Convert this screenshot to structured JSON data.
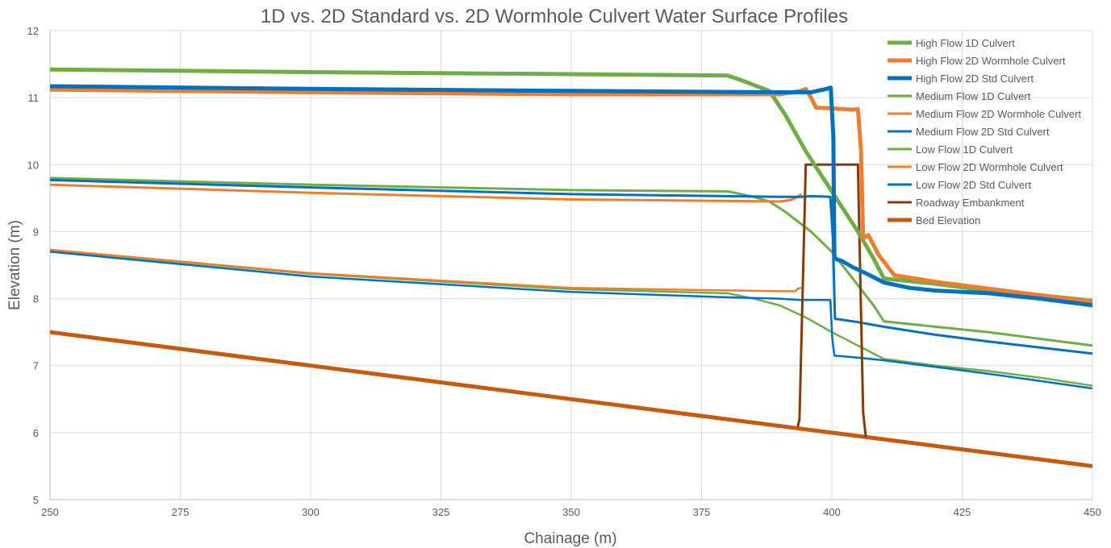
{
  "chart_data": {
    "type": "line",
    "title": "1D vs. 2D Standard vs. 2D Wormhole Culvert Water Surface Profiles",
    "xlabel": "Chainage (m)",
    "ylabel": "Elevation (m)",
    "xlim": [
      250,
      450
    ],
    "ylim": [
      5,
      12
    ],
    "x_ticks": [
      250,
      275,
      300,
      325,
      350,
      375,
      400,
      425,
      450
    ],
    "y_ticks": [
      5,
      6,
      7,
      8,
      9,
      10,
      11,
      12
    ],
    "grid": true,
    "legend_position": "top-right",
    "series": [
      {
        "name": "High Flow 1D Culvert",
        "color": "#70ad47",
        "width": 5,
        "x": [
          250,
          300,
          350,
          380,
          383,
          388,
          391,
          395,
          400,
          405,
          408,
          410,
          420,
          430,
          440,
          450
        ],
        "y": [
          11.42,
          11.38,
          11.35,
          11.33,
          11.25,
          11.1,
          10.75,
          10.2,
          9.6,
          9.0,
          8.6,
          8.3,
          8.22,
          8.12,
          8.05,
          7.97
        ]
      },
      {
        "name": "High Flow 2D Wormhole Culvert",
        "color": "#ed7d31",
        "width": 5,
        "x": [
          250,
          300,
          350,
          390,
          394,
          395,
          396,
          397,
          400,
          404,
          405,
          405.6,
          406,
          407,
          409,
          412,
          420,
          430,
          440,
          450
        ],
        "y": [
          11.12,
          11.08,
          11.05,
          11.05,
          11.1,
          11.13,
          11.0,
          10.85,
          10.84,
          10.82,
          10.83,
          10.2,
          8.9,
          8.95,
          8.65,
          8.35,
          8.25,
          8.15,
          8.05,
          7.95
        ]
      },
      {
        "name": "High Flow 2D Std Culvert",
        "color": "#0070c0",
        "width": 5,
        "x": [
          250,
          300,
          350,
          390,
          396,
          399,
          399.8,
          400.3,
          400.5,
          402,
          404,
          407,
          410,
          415,
          420,
          430,
          440,
          450
        ],
        "y": [
          11.17,
          11.13,
          11.1,
          11.08,
          11.08,
          11.13,
          11.15,
          10.4,
          8.6,
          8.56,
          8.47,
          8.36,
          8.24,
          8.16,
          8.12,
          8.08,
          8.0,
          7.9
        ]
      },
      {
        "name": "Medium Flow 1D Culvert",
        "color": "#70ad47",
        "width": 3,
        "x": [
          250,
          300,
          350,
          380,
          385,
          388,
          391,
          396,
          400,
          404,
          408,
          410,
          420,
          430,
          440,
          450
        ],
        "y": [
          9.8,
          9.7,
          9.62,
          9.6,
          9.52,
          9.45,
          9.3,
          9.0,
          8.7,
          8.3,
          7.9,
          7.66,
          7.58,
          7.5,
          7.4,
          7.3
        ]
      },
      {
        "name": "Medium Flow 2D Wormhole Culvert",
        "color": "#ed7d31",
        "width": 3,
        "x": [
          250,
          300,
          350,
          390,
          392,
          393.5,
          394
        ],
        "y": [
          9.7,
          9.58,
          9.48,
          9.45,
          9.47,
          9.52,
          9.55
        ]
      },
      {
        "name": "Medium Flow 2D Std Culvert",
        "color": "#0070c0",
        "width": 3,
        "x": [
          250,
          300,
          350,
          390,
          394,
          396,
          399.7,
          400.2,
          400.6,
          405,
          410,
          420,
          430,
          440,
          450
        ],
        "y": [
          9.77,
          9.66,
          9.56,
          9.52,
          9.52,
          9.53,
          9.52,
          8.9,
          7.7,
          7.65,
          7.58,
          7.46,
          7.36,
          7.27,
          7.18
        ]
      },
      {
        "name": "Low Flow 1D Culvert",
        "color": "#70ad47",
        "width": 2.5,
        "x": [
          250,
          300,
          350,
          380,
          385,
          390,
          395,
          400,
          405,
          410,
          420,
          430,
          440,
          450
        ],
        "y": [
          8.72,
          8.37,
          8.14,
          8.08,
          8.0,
          7.9,
          7.72,
          7.5,
          7.3,
          7.1,
          7.0,
          6.92,
          6.82,
          6.7
        ]
      },
      {
        "name": "Low Flow 2D Wormhole Culvert",
        "color": "#ed7d31",
        "width": 2.5,
        "x": [
          250,
          300,
          350,
          390,
          393,
          393.5,
          394
        ],
        "y": [
          8.73,
          8.38,
          8.16,
          8.11,
          8.11,
          8.15,
          8.16
        ]
      },
      {
        "name": "Low Flow 2D Std Culvert",
        "color": "#0070c0",
        "width": 2.5,
        "x": [
          250,
          300,
          350,
          380,
          390,
          394,
          399.7,
          400.1,
          400.5,
          405,
          410,
          420,
          430,
          440,
          450
        ],
        "y": [
          8.7,
          8.33,
          8.1,
          8.02,
          8.0,
          7.98,
          7.98,
          7.4,
          7.15,
          7.12,
          7.08,
          6.98,
          6.88,
          6.77,
          6.66
        ]
      },
      {
        "name": "Roadway Embankment",
        "color": "#843c0c",
        "width": 3,
        "x": [
          393.5,
          393.8,
          395,
          405,
          406,
          406.5
        ],
        "y": [
          6.1,
          6.2,
          10.0,
          10.0,
          6.3,
          5.95
        ]
      },
      {
        "name": "Bed Elevation",
        "color": "#c55a11",
        "width": 5,
        "x": [
          250,
          275,
          300,
          325,
          350,
          375,
          400,
          425,
          450
        ],
        "y": [
          7.5,
          7.25,
          7.0,
          6.75,
          6.5,
          6.25,
          6.0,
          5.75,
          5.5
        ]
      }
    ]
  }
}
